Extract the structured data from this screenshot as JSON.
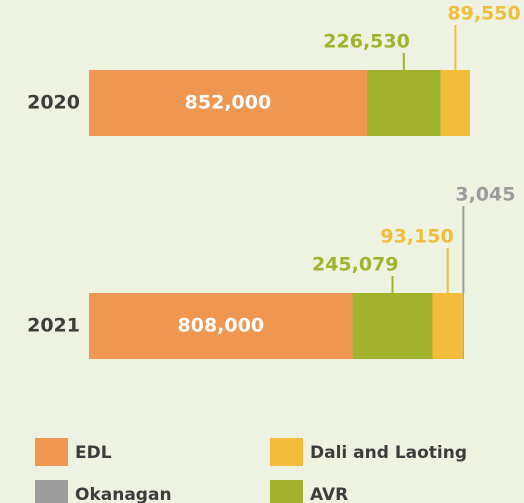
{
  "chart_data": {
    "type": "stacked-barh",
    "categories": [
      "2020",
      "2021"
    ],
    "series": [
      {
        "name": "EDL",
        "color": "#ef9650",
        "values": [
          852000,
          808000
        ],
        "value_labels": [
          "852,000",
          "808,000"
        ]
      },
      {
        "name": "AVR",
        "color": "#a3b22d",
        "values": [
          226530,
          245079
        ],
        "value_labels": [
          "226,530",
          "245,079"
        ]
      },
      {
        "name": "Dali and Laoting",
        "color": "#f2bd3b",
        "values": [
          89550,
          93150
        ],
        "value_labels": [
          "89,550",
          "93,150"
        ]
      },
      {
        "name": "Okanagan",
        "color": "#9c9c9c",
        "values": [
          null,
          3045
        ],
        "value_labels": [
          null,
          "3,045"
        ]
      }
    ]
  }
}
